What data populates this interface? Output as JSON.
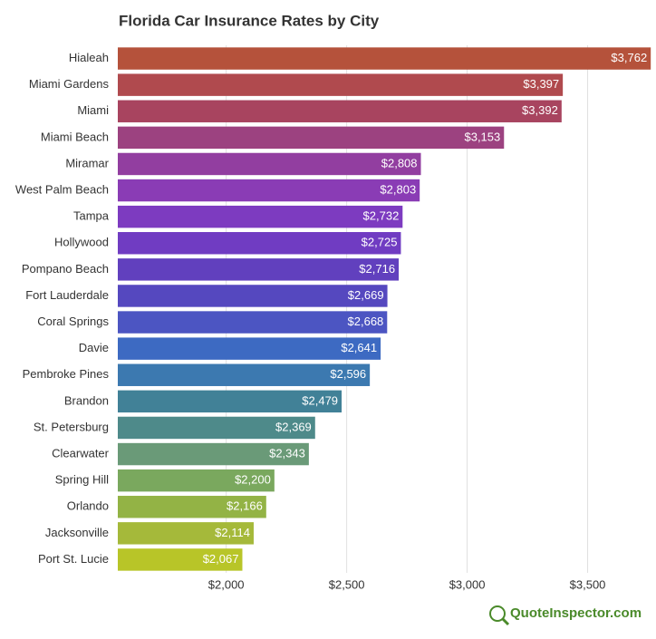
{
  "chart_data": {
    "type": "hbar",
    "title": "Florida Car Insurance Rates by City",
    "categories": [
      "Hialeah",
      "Miami Gardens",
      "Miami",
      "Miami Beach",
      "Miramar",
      "West Palm Beach",
      "Tampa",
      "Hollywood",
      "Pompano Beach",
      "Fort Lauderdale",
      "Coral Springs",
      "Davie",
      "Pembroke Pines",
      "Brandon",
      "St. Petersburg",
      "Clearwater",
      "Spring Hill",
      "Orlando",
      "Jacksonville",
      "Port St. Lucie"
    ],
    "values": [
      3762,
      3397,
      3392,
      3153,
      2808,
      2803,
      2732,
      2725,
      2716,
      2669,
      2668,
      2641,
      2596,
      2479,
      2369,
      2343,
      2200,
      2166,
      2114,
      2067
    ],
    "value_labels": [
      "$3,762",
      "$3,397",
      "$3,392",
      "$3,153",
      "$2,808",
      "$2,803",
      "$2,732",
      "$2,725",
      "$2,716",
      "$2,669",
      "$2,668",
      "$2,641",
      "$2,596",
      "$2,479",
      "$2,369",
      "$2,343",
      "$2,200",
      "$2,166",
      "$2,114",
      "$2,067"
    ],
    "colors": [
      "#b5523b",
      "#b04a4e",
      "#a8445f",
      "#9c4280",
      "#923ea0",
      "#8a3cb5",
      "#7d3bc0",
      "#703cc2",
      "#6140be",
      "#5548bf",
      "#4c55c2",
      "#3d6ac2",
      "#3c79b0",
      "#418197",
      "#4e8a8a",
      "#6a9a78",
      "#7aa85e",
      "#93b345",
      "#a5b93a",
      "#b8c528"
    ],
    "xlim": [
      1550,
      3765
    ],
    "xticks": [
      {
        "value": 2000,
        "label": "$2,000"
      },
      {
        "value": 2500,
        "label": "$2,500"
      },
      {
        "value": 3000,
        "label": "$3,000"
      },
      {
        "value": 3500,
        "label": "$3,500"
      }
    ],
    "grid": true,
    "brand": "QuoteInspector.com"
  }
}
